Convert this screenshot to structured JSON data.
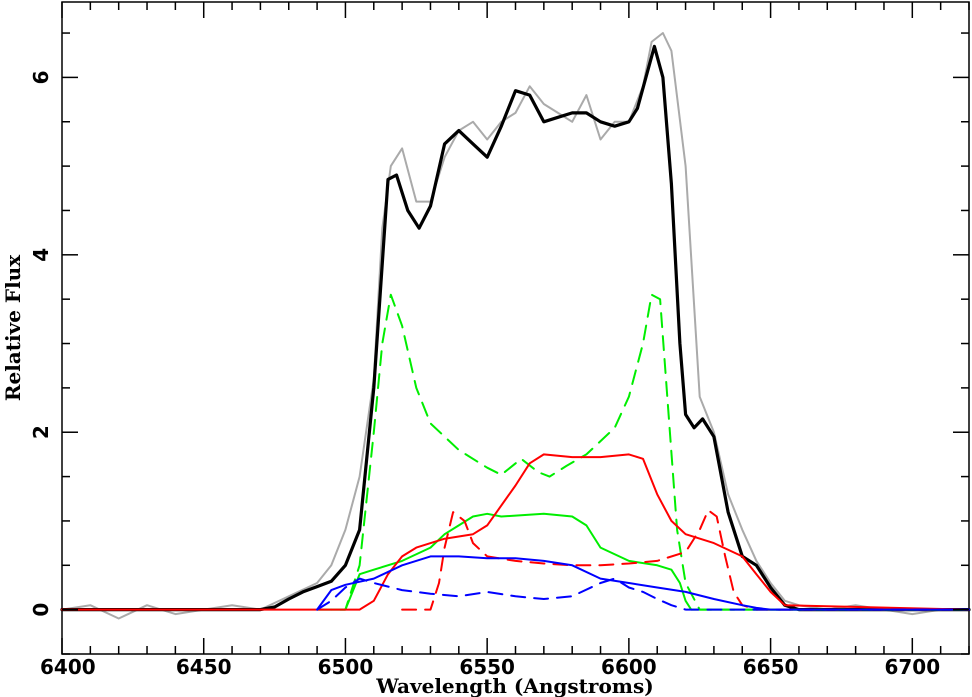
{
  "chart_data": {
    "type": "line",
    "title": "",
    "xlabel": "Wavelength (Angstroms)",
    "ylabel": "Relative Flux",
    "xlim": [
      6400,
      6720
    ],
    "ylim": [
      -0.5,
      6.85
    ],
    "xticks": [
      6400,
      6450,
      6500,
      6550,
      6600,
      6650,
      6700
    ],
    "yticks": [
      0,
      2,
      4,
      6
    ],
    "grid": false,
    "legend": "none",
    "series": [
      {
        "key": "observed",
        "color": "#aaaaaa",
        "dash": "solid",
        "width": 2,
        "x": [
          6400,
          6410,
          6420,
          6430,
          6440,
          6450,
          6460,
          6470,
          6480,
          6490,
          6495,
          6500,
          6505,
          6510,
          6513,
          6516,
          6520,
          6525,
          6530,
          6535,
          6540,
          6545,
          6550,
          6555,
          6560,
          6565,
          6570,
          6575,
          6580,
          6585,
          6590,
          6595,
          6600,
          6605,
          6608,
          6612,
          6615,
          6620,
          6625,
          6630,
          6635,
          6640,
          6645,
          6650,
          6655,
          6660,
          6670,
          6680,
          6690,
          6700,
          6710,
          6720
        ],
        "y": [
          0.0,
          0.05,
          -0.1,
          0.05,
          -0.05,
          0.0,
          0.05,
          0.0,
          0.15,
          0.3,
          0.5,
          0.9,
          1.5,
          2.6,
          4.3,
          5.0,
          5.2,
          4.6,
          4.6,
          5.1,
          5.4,
          5.5,
          5.3,
          5.5,
          5.6,
          5.9,
          5.7,
          5.6,
          5.5,
          5.8,
          5.3,
          5.5,
          5.5,
          5.9,
          6.4,
          6.5,
          6.3,
          5.0,
          2.4,
          2.0,
          1.3,
          0.9,
          0.55,
          0.3,
          0.1,
          0.05,
          0.0,
          0.05,
          0.0,
          -0.05,
          0.0,
          0.0
        ]
      },
      {
        "key": "model-total",
        "color": "#000000",
        "dash": "solid",
        "width": 3.2,
        "x": [
          6400,
          6470,
          6475,
          6480,
          6485,
          6490,
          6495,
          6500,
          6505,
          6510,
          6515,
          6518,
          6522,
          6526,
          6530,
          6535,
          6540,
          6545,
          6550,
          6555,
          6560,
          6565,
          6570,
          6575,
          6580,
          6585,
          6590,
          6595,
          6600,
          6603,
          6606,
          6609,
          6612,
          6615,
          6618,
          6620,
          6623,
          6626,
          6630,
          6635,
          6640,
          6645,
          6650,
          6655,
          6660,
          6720
        ],
        "y": [
          0.0,
          0.0,
          0.03,
          0.12,
          0.2,
          0.26,
          0.32,
          0.5,
          0.9,
          2.5,
          4.85,
          4.9,
          4.5,
          4.3,
          4.55,
          5.25,
          5.4,
          5.25,
          5.1,
          5.45,
          5.85,
          5.8,
          5.5,
          5.55,
          5.6,
          5.6,
          5.5,
          5.45,
          5.5,
          5.65,
          6.0,
          6.35,
          6.0,
          4.8,
          3.0,
          2.2,
          2.05,
          2.15,
          1.95,
          1.1,
          0.6,
          0.5,
          0.25,
          0.05,
          0.0,
          0.0
        ]
      },
      {
        "key": "green-dashed",
        "color": "#00ee00",
        "dash": "dashed",
        "width": 2,
        "x": [
          6490,
          6500,
          6505,
          6510,
          6513,
          6516,
          6520,
          6525,
          6530,
          6540,
          6550,
          6555,
          6562,
          6568,
          6572,
          6578,
          6585,
          6595,
          6600,
          6605,
          6608,
          6611,
          6614,
          6617,
          6620,
          6625,
          6720
        ],
        "y": [
          0.0,
          0.0,
          0.5,
          2.0,
          3.0,
          3.55,
          3.2,
          2.5,
          2.1,
          1.8,
          1.6,
          1.52,
          1.7,
          1.55,
          1.5,
          1.62,
          1.75,
          2.05,
          2.4,
          3.0,
          3.55,
          3.5,
          2.2,
          0.9,
          0.3,
          0.0,
          0.0
        ]
      },
      {
        "key": "green-solid",
        "color": "#00ee00",
        "dash": "solid",
        "width": 2,
        "x": [
          6495,
          6500,
          6505,
          6510,
          6520,
          6530,
          6535,
          6540,
          6545,
          6550,
          6555,
          6560,
          6570,
          6580,
          6585,
          6590,
          6600,
          6610,
          6615,
          6618,
          6620,
          6622,
          6720
        ],
        "y": [
          0.0,
          0.0,
          0.4,
          0.45,
          0.55,
          0.7,
          0.85,
          0.95,
          1.05,
          1.08,
          1.05,
          1.06,
          1.08,
          1.05,
          0.95,
          0.7,
          0.55,
          0.5,
          0.45,
          0.3,
          0.1,
          0.0,
          0.0
        ]
      },
      {
        "key": "red-solid",
        "color": "#ff0000",
        "dash": "solid",
        "width": 2,
        "x": [
          6400,
          6505,
          6510,
          6515,
          6520,
          6525,
          6535,
          6545,
          6550,
          6560,
          6565,
          6570,
          6580,
          6590,
          6600,
          6605,
          6610,
          6615,
          6620,
          6630,
          6640,
          6645,
          6650,
          6655,
          6720
        ],
        "y": [
          0.0,
          0.0,
          0.1,
          0.4,
          0.6,
          0.7,
          0.8,
          0.85,
          0.95,
          1.4,
          1.65,
          1.75,
          1.72,
          1.72,
          1.75,
          1.7,
          1.3,
          1.0,
          0.85,
          0.75,
          0.6,
          0.4,
          0.2,
          0.05,
          0.0
        ]
      },
      {
        "key": "red-dashed",
        "color": "#ff0000",
        "dash": "dashed",
        "width": 2,
        "x": [
          6520,
          6530,
          6533,
          6535,
          6538,
          6542,
          6545,
          6550,
          6560,
          6570,
          6580,
          6590,
          6600,
          6610,
          6620,
          6625,
          6628,
          6631,
          6634,
          6637,
          6640,
          6645,
          6720
        ],
        "y": [
          0.0,
          0.0,
          0.3,
          0.7,
          1.1,
          1.0,
          0.75,
          0.6,
          0.55,
          0.52,
          0.5,
          0.5,
          0.52,
          0.55,
          0.65,
          0.9,
          1.12,
          1.05,
          0.6,
          0.2,
          0.05,
          0.0,
          0.0
        ]
      },
      {
        "key": "blue-solid",
        "color": "#0000ff",
        "dash": "solid",
        "width": 2,
        "x": [
          6490,
          6495,
          6500,
          6510,
          6520,
          6530,
          6540,
          6550,
          6560,
          6570,
          6580,
          6590,
          6600,
          6610,
          6620,
          6630,
          6640,
          6645,
          6650,
          6720
        ],
        "y": [
          0.0,
          0.22,
          0.28,
          0.35,
          0.5,
          0.6,
          0.6,
          0.58,
          0.58,
          0.55,
          0.5,
          0.35,
          0.3,
          0.25,
          0.2,
          0.12,
          0.05,
          0.02,
          0.0,
          0.0
        ]
      },
      {
        "key": "blue-dashed",
        "color": "#0000ff",
        "dash": "dashed",
        "width": 2,
        "x": [
          6490,
          6495,
          6500,
          6505,
          6510,
          6520,
          6530,
          6540,
          6550,
          6560,
          6570,
          6580,
          6590,
          6595,
          6600,
          6605,
          6610,
          6615,
          6620,
          6630,
          6720
        ],
        "y": [
          0.0,
          0.1,
          0.25,
          0.35,
          0.3,
          0.22,
          0.18,
          0.15,
          0.2,
          0.15,
          0.12,
          0.15,
          0.3,
          0.35,
          0.25,
          0.2,
          0.12,
          0.05,
          0.0,
          0.0,
          0.0
        ]
      }
    ]
  }
}
